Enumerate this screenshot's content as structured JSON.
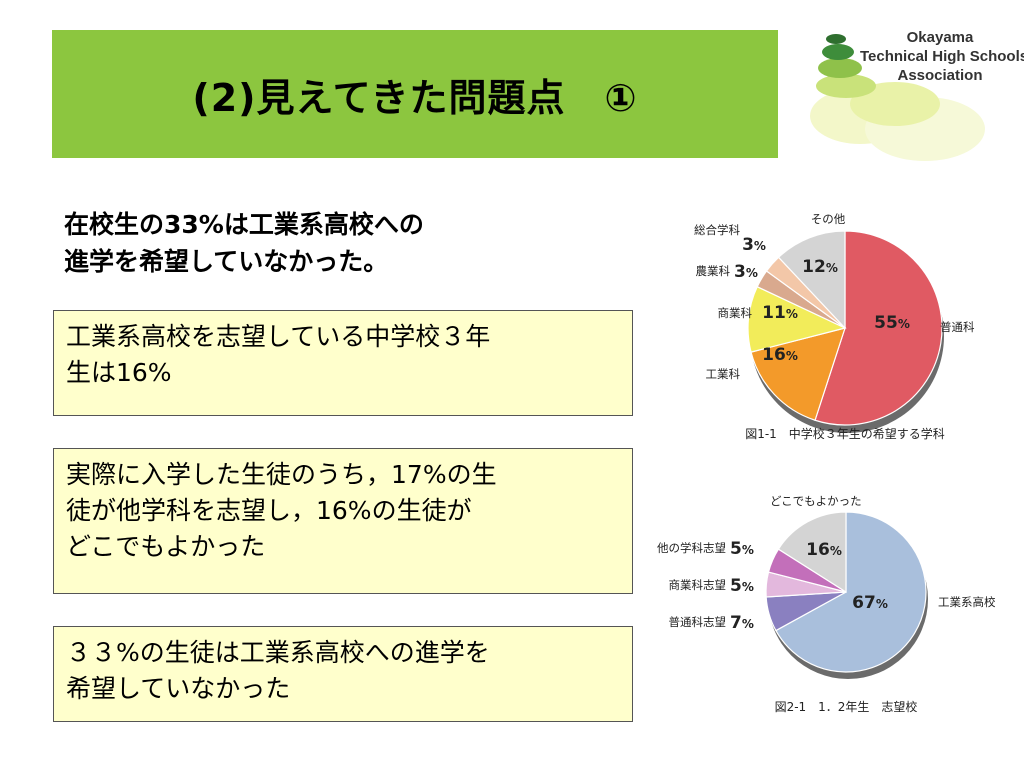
{
  "title": "(2)見えてきた問題点　①",
  "logo": {
    "lines": [
      "Okayama",
      "Technical High Schools",
      "Association"
    ]
  },
  "lead": [
    "在校生の33%は工業系高校への",
    "進学を希望していなかった。"
  ],
  "boxes": [
    {
      "lines": [
        "工業系高校を志望している中学校３年",
        "生は16%"
      ]
    },
    {
      "lines": [
        "実際に入学した生徒のうち，17%の生",
        "徒が他学科を志望し，16%の生徒が",
        "どこでもよかった"
      ]
    },
    {
      "lines": [
        "３３%の生徒は工業系高校への進学を",
        "希望していなかった"
      ]
    }
  ],
  "colors": {
    "title_bg": "#8cc63f",
    "box_bg": "#ffffcc"
  },
  "chart_data": [
    {
      "type": "pie",
      "caption": "図1-1　中学校３年生の希望する学科",
      "slices": [
        {
          "label": "普通科",
          "value": 55,
          "color": "#e05a63"
        },
        {
          "label": "工業科",
          "value": 16,
          "color": "#f39a2a"
        },
        {
          "label": "商業科",
          "value": 11,
          "color": "#f2ec5a"
        },
        {
          "label": "農業科",
          "value": 3,
          "color": "#d9a98e"
        },
        {
          "label": "総合学科",
          "value": 3,
          "color": "#f3c7a8"
        },
        {
          "label": "その他",
          "value": 12,
          "color": "#d4d4d4"
        }
      ]
    },
    {
      "type": "pie",
      "caption": "図2-1　1．2年生　志望校",
      "slices": [
        {
          "label": "工業系高校",
          "value": 67,
          "color": "#a9bfdc"
        },
        {
          "label": "普通科志望",
          "value": 7,
          "color": "#8a80c0"
        },
        {
          "label": "商業科志望",
          "value": 5,
          "color": "#e3b8dd"
        },
        {
          "label": "他の学科志望",
          "value": 5,
          "color": "#c36fba"
        },
        {
          "label": "どこでもよかった",
          "value": 16,
          "color": "#d4d4d4"
        }
      ]
    }
  ]
}
